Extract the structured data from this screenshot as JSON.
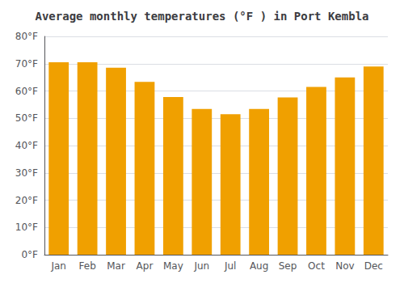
{
  "chart_data": {
    "type": "bar",
    "title": "Average monthly temperatures (°F ) in Port Kembla",
    "categories": [
      "Jan",
      "Feb",
      "Mar",
      "Apr",
      "May",
      "Jun",
      "Jul",
      "Aug",
      "Sep",
      "Oct",
      "Nov",
      "Dec"
    ],
    "values": [
      70.5,
      70.5,
      68.5,
      63.3,
      57.8,
      53.4,
      51.5,
      53.4,
      57.6,
      61.5,
      65.0,
      69.0
    ],
    "color": "#F0A000",
    "ylim": [
      0,
      80
    ],
    "yticks": [
      {
        "value": 0,
        "label": "0°F"
      },
      {
        "value": 10,
        "label": "10°F"
      },
      {
        "value": 20,
        "label": "20°F"
      },
      {
        "value": 30,
        "label": "30°F"
      },
      {
        "value": 40,
        "label": "40°F"
      },
      {
        "value": 50,
        "label": "50°F"
      },
      {
        "value": 60,
        "label": "60°F"
      },
      {
        "value": 70,
        "label": "70°F"
      },
      {
        "value": 80,
        "label": "80°F"
      }
    ],
    "grid": true
  }
}
